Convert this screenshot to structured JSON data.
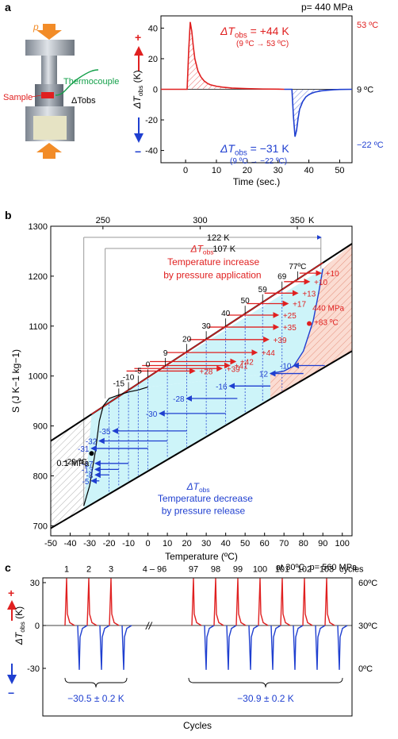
{
  "colors": {
    "red": "#e02020",
    "blue": "#1f3fd0",
    "cyan": "#c8f3f8",
    "salmon": "#f6c0b0",
    "hatch_grey": "#9a9a9a",
    "green": "#14a04a",
    "orange": "#f28c28",
    "black": "#000000"
  },
  "panel_a": {
    "panel_label": "a",
    "top_right": "p= 440 MPa",
    "schematic": {
      "p_label": "p",
      "thermocouple_label": "Thermocouple",
      "sample_label": "Sample",
      "dt_label": "ΔTobs"
    },
    "chart_data": {
      "type": "line",
      "xlabel": "Time (sec.)",
      "ylabel": "ΔTobs (K)",
      "xlim": [
        -8,
        54
      ],
      "ylim": [
        -48,
        48
      ],
      "xticks": [
        0,
        10,
        20,
        30,
        40,
        50
      ],
      "yticks": [
        -40,
        -20,
        0,
        20,
        40
      ],
      "series": [
        {
          "name": "increase",
          "color": "#e02020",
          "x": [
            -8,
            0.5,
            1.0,
            1.5,
            2.0,
            2.5,
            3,
            4,
            5,
            6,
            7,
            8,
            10,
            12,
            15,
            20,
            25,
            30,
            32
          ],
          "y": [
            0,
            0,
            25,
            44,
            38,
            28,
            20,
            12,
            8,
            5.5,
            4,
            3,
            2,
            1.4,
            0.8,
            0.4,
            0.2,
            0.1,
            0
          ]
        },
        {
          "name": "decrease",
          "color": "#1f3fd0",
          "x": [
            32,
            34.5,
            35,
            35.5,
            36,
            36.5,
            37,
            38,
            39,
            40,
            41,
            42,
            44,
            46,
            48,
            50,
            54
          ],
          "y": [
            0,
            0,
            -18,
            -31,
            -27,
            -19,
            -13,
            -8,
            -5,
            -3.5,
            -2.5,
            -1.8,
            -1,
            -0.6,
            -0.3,
            -0.1,
            0
          ]
        }
      ],
      "annotations": {
        "up_sign": "+",
        "down_sign": "−",
        "inc_main": "ΔTobs = +44 K",
        "inc_sub": "(9 ºC → 53 ºC)",
        "dec_main": "ΔTobs = −31 K",
        "dec_sub": "(9 ºC → −22 ºC)",
        "right_top": "53 ºC",
        "right_mid": "9 ºC",
        "right_bot": "−22 ºC"
      }
    }
  },
  "panel_b": {
    "panel_label": "b",
    "chart_data": {
      "type": "line",
      "xlabel": "Temperature (ºC)",
      "ylabel": "S (J K−1 kg−1)",
      "xlim": [
        -50,
        105
      ],
      "ylim": [
        680,
        1300
      ],
      "xticks": [
        -50,
        -40,
        -30,
        -20,
        -10,
        0,
        10,
        20,
        30,
        40,
        50,
        60,
        70,
        80,
        90,
        100
      ],
      "yticks": [
        700,
        800,
        900,
        1000,
        1100,
        1200,
        1300
      ],
      "top_ticks_K": [
        250,
        300,
        350
      ],
      "top_unit": "K",
      "bracket_122": "122 K",
      "bracket_107": "107 K",
      "upper_curve_0_1MPa": {
        "x": [
          -50,
          105
        ],
        "y": [
          870,
          1265
        ]
      },
      "lower_curve_440MPa": {
        "x": [
          -50,
          105
        ],
        "y": [
          695,
          1050
        ]
      },
      "transition_low": {
        "x": [
          -33,
          -30,
          -27,
          -25,
          -23,
          -20,
          -15,
          -10,
          -5,
          0
        ],
        "y": [
          740,
          780,
          850,
          910,
          940,
          955,
          962,
          968,
          972,
          978
        ]
      },
      "transition_high": {
        "x": [
          63,
          70,
          75,
          80,
          85,
          88,
          90
        ],
        "y": [
          1005,
          1010,
          1020,
          1050,
          1110,
          1170,
          1215
        ]
      },
      "points": [
        {
          "label": "−29 ºC",
          "x": -29,
          "y": 845
        },
        {
          "label": "440 MPa",
          "sub": "+83 ºC",
          "x": 83,
          "y": 1105
        }
      ],
      "label_0_1MPa": "0.1 MPa",
      "text_red": [
        "ΔTobs",
        "Temperature increase",
        "by pressure application"
      ],
      "text_blue": [
        "ΔTobs",
        "Temperature decrease",
        "by pressure release"
      ],
      "increase_arrows": [
        {
          "t0": -15,
          "start": -11,
          "end": 24,
          "y": 1010,
          "label": "+28"
        },
        {
          "t0": -10,
          "start": -7,
          "end": 38,
          "y": 1015,
          "label": "+39"
        },
        {
          "t0": -5,
          "start": -3,
          "end": 42,
          "y": 1021,
          "label": "+41"
        },
        {
          "t0": 0,
          "start": 1,
          "end": 45,
          "y": 1029,
          "label": "+42"
        },
        {
          "t0": 9,
          "start": 10,
          "end": 56,
          "y": 1047,
          "label": "+44"
        },
        {
          "t0": 20,
          "start": 21,
          "end": 62,
          "y": 1073,
          "label": "+39"
        },
        {
          "t0": 30,
          "start": 31,
          "end": 67,
          "y": 1098,
          "label": "+35"
        },
        {
          "t0": 40,
          "start": 41,
          "end": 67,
          "y": 1122,
          "label": "+25"
        },
        {
          "t0": 50,
          "start": 51,
          "end": 72,
          "y": 1145,
          "label": "+17"
        },
        {
          "t0": 59,
          "start": 60,
          "end": 77,
          "y": 1166,
          "label": "+13"
        },
        {
          "t0": 69,
          "start": 70,
          "end": 83,
          "y": 1189,
          "label": "+10"
        },
        {
          "t0": 77,
          "start": 78,
          "end": 89,
          "y": 1206,
          "label": "+10"
        }
      ],
      "decrease_arrows": [
        {
          "from": 91,
          "to": 75,
          "y": 1021,
          "label": "-10"
        },
        {
          "from": 80,
          "to": 63,
          "y": 1005,
          "label": "12"
        },
        {
          "from": 63,
          "to": 42,
          "y": 980,
          "label": "-16"
        },
        {
          "from": 46,
          "to": 20,
          "y": 955,
          "label": "-28"
        },
        {
          "from": 40,
          "to": 6,
          "y": 925,
          "label": "-30"
        },
        {
          "from": 20,
          "to": -18,
          "y": 890,
          "label": "-35"
        },
        {
          "from": 10,
          "to": -25,
          "y": 870,
          "label": "-32"
        },
        {
          "from": 0,
          "to": -29,
          "y": 855,
          "label": "-31"
        },
        {
          "from": -10,
          "to": -27,
          "y": 825,
          "label": "-17"
        },
        {
          "from": -15,
          "to": -27,
          "y": 813,
          "label": "-13"
        },
        {
          "from": -20,
          "to": -27,
          "y": 802,
          "label": "-8"
        },
        {
          "from": -25,
          "to": -29,
          "y": 790,
          "label": "-5"
        }
      ],
      "dashed_blue_x": [
        -20,
        -15,
        -10,
        -5,
        0,
        10,
        20,
        30,
        40,
        50,
        59,
        69
      ]
    }
  },
  "panel_c": {
    "panel_label": "c",
    "top_right": "at 30ºC, p= 560 MPa",
    "chart_data": {
      "type": "line",
      "xlabel": "Cycles",
      "ylabel": "ΔTobs (K)",
      "ylim": [
        -38,
        38
      ],
      "yticks": [
        -30,
        0,
        30
      ],
      "right_labels": [
        "60ºC",
        "30ºC",
        "0ºC"
      ],
      "cycles_left": [
        "1",
        "2",
        "3"
      ],
      "cycles_mid": "4 – 96",
      "cycles_right": [
        "97",
        "98",
        "99",
        "100",
        "101",
        "102",
        "103"
      ],
      "cycles_suffix": "cycles",
      "peak_pos": 33,
      "peak_neg": -31,
      "left_group_value": "−30.5 ± 0.2 K",
      "right_group_value": "−30.9 ± 0.2 K",
      "break_mark": "//",
      "up_sign": "+",
      "down_sign": "−"
    }
  }
}
